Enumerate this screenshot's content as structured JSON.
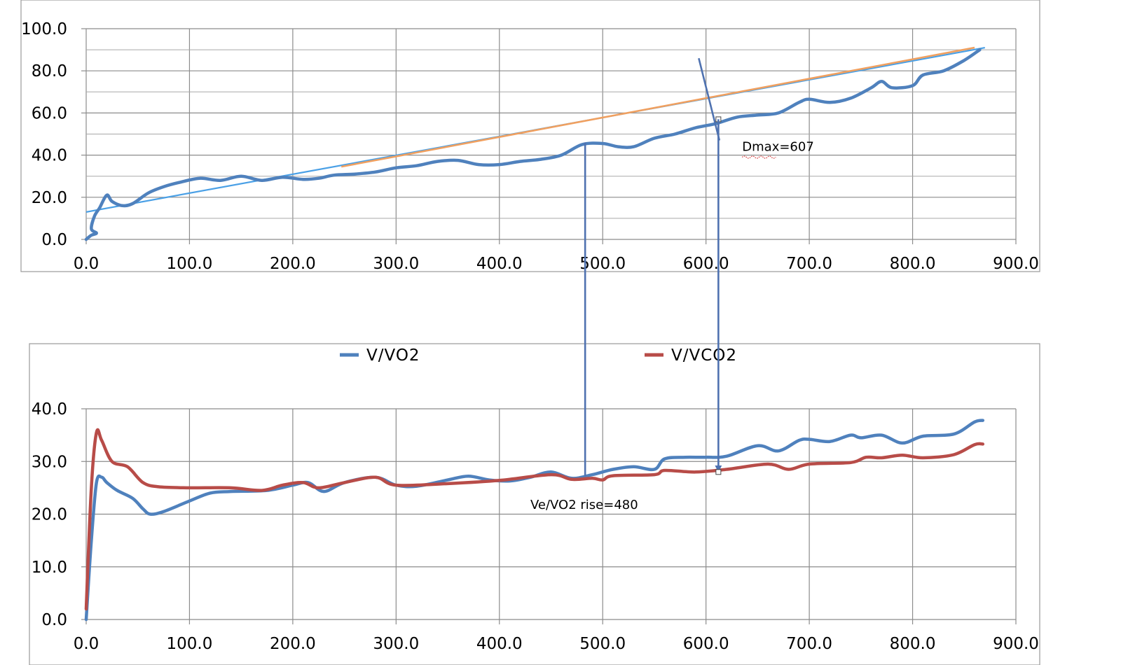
{
  "chart_data": [
    {
      "type": "line",
      "title": "",
      "xlabel": "",
      "ylabel": "",
      "xlim": [
        0,
        900
      ],
      "ylim": [
        0,
        100
      ],
      "x_ticks": [
        "0.0",
        "100.0",
        "200.0",
        "300.0",
        "400.0",
        "500.0",
        "600.0",
        "700.0",
        "800.0",
        "900.0"
      ],
      "y_ticks": [
        "0.0",
        "20.0",
        "40.0",
        "60.0",
        "80.0",
        "100.0"
      ],
      "grid": true,
      "colors": {
        "data": "#4f81bd",
        "fit": "#4aa0e6",
        "chord": "#f0a060",
        "perp": "#4f72b0"
      },
      "series": [
        {
          "points": [
            [
              0,
              0
            ],
            [
              5,
              2
            ],
            [
              10,
              3
            ],
            [
              5,
              5
            ],
            [
              8,
              11
            ],
            [
              13,
              15
            ],
            [
              20,
              21
            ],
            [
              25,
              18
            ],
            [
              35,
              16
            ],
            [
              45,
              17
            ],
            [
              60,
              22
            ],
            [
              75,
              25
            ],
            [
              90,
              27
            ],
            [
              110,
              29
            ],
            [
              130,
              28
            ],
            [
              150,
              30
            ],
            [
              170,
              28
            ],
            [
              190,
              29.5
            ],
            [
              210,
              28.5
            ],
            [
              225,
              29
            ],
            [
              240,
              30.5
            ],
            [
              260,
              31
            ],
            [
              280,
              32
            ],
            [
              300,
              34
            ],
            [
              320,
              35
            ],
            [
              340,
              37
            ],
            [
              360,
              37.5
            ],
            [
              380,
              35.5
            ],
            [
              400,
              35.5
            ],
            [
              420,
              37
            ],
            [
              440,
              38
            ],
            [
              460,
              40
            ],
            [
              480,
              45
            ],
            [
              500,
              45.5
            ],
            [
              515,
              44
            ],
            [
              530,
              44
            ],
            [
              550,
              48
            ],
            [
              570,
              50
            ],
            [
              590,
              53
            ],
            [
              610,
              55
            ],
            [
              630,
              58
            ],
            [
              650,
              59
            ],
            [
              670,
              60
            ],
            [
              690,
              65
            ],
            [
              700,
              66.5
            ],
            [
              720,
              65
            ],
            [
              740,
              67
            ],
            [
              760,
              72
            ],
            [
              770,
              75
            ],
            [
              780,
              72
            ],
            [
              800,
              73
            ],
            [
              810,
              78
            ],
            [
              830,
              80
            ],
            [
              850,
              85
            ],
            [
              865,
              90
            ]
          ]
        },
        {
          "points": [
            [
              0,
              13
            ],
            [
              870,
              91
            ]
          ]
        },
        {
          "points": [
            [
              247,
              34.5
            ],
            [
              860,
              91
            ]
          ]
        },
        {
          "points": [
            [
              593,
              86
            ],
            [
              613,
              47
            ]
          ]
        }
      ],
      "annotations": [
        {
          "text": "Dmax=607",
          "x": 635,
          "y": 42
        }
      ]
    },
    {
      "type": "line",
      "title": "",
      "xlabel": "",
      "ylabel": "",
      "xlim": [
        0,
        900
      ],
      "ylim": [
        0,
        40
      ],
      "x_ticks": [
        "0.0",
        "100.0",
        "200.0",
        "300.0",
        "400.0",
        "500.0",
        "600.0",
        "700.0",
        "800.0",
        "900.0"
      ],
      "y_ticks": [
        "0.0",
        "10.0",
        "20.0",
        "30.0",
        "40.0"
      ],
      "grid": true,
      "legend": "top",
      "series": [
        {
          "name": "V/VO2",
          "color": "#4f81bd",
          "points": [
            [
              0,
              0
            ],
            [
              5,
              15
            ],
            [
              10,
              26
            ],
            [
              15,
              27
            ],
            [
              20,
              26
            ],
            [
              30,
              24.5
            ],
            [
              45,
              23
            ],
            [
              55,
              21
            ],
            [
              62,
              20
            ],
            [
              75,
              20.5
            ],
            [
              100,
              22.5
            ],
            [
              120,
              24
            ],
            [
              140,
              24.3
            ],
            [
              175,
              24.5
            ],
            [
              200,
              25.5
            ],
            [
              215,
              26
            ],
            [
              230,
              24.3
            ],
            [
              250,
              26
            ],
            [
              280,
              27
            ],
            [
              300,
              25.5
            ],
            [
              320,
              25.3
            ],
            [
              350,
              26.5
            ],
            [
              370,
              27.2
            ],
            [
              390,
              26.5
            ],
            [
              410,
              26.3
            ],
            [
              430,
              27
            ],
            [
              450,
              28
            ],
            [
              470,
              26.8
            ],
            [
              490,
              27.5
            ],
            [
              510,
              28.5
            ],
            [
              530,
              29
            ],
            [
              550,
              28.5
            ],
            [
              560,
              30.5
            ],
            [
              580,
              30.8
            ],
            [
              600,
              30.8
            ],
            [
              620,
              31
            ],
            [
              650,
              33
            ],
            [
              670,
              32
            ],
            [
              690,
              34
            ],
            [
              700,
              34.2
            ],
            [
              720,
              33.8
            ],
            [
              740,
              35
            ],
            [
              750,
              34.5
            ],
            [
              770,
              35
            ],
            [
              790,
              33.5
            ],
            [
              810,
              34.8
            ],
            [
              840,
              35.2
            ],
            [
              860,
              37.5
            ],
            [
              868,
              37.8
            ]
          ]
        },
        {
          "name": "V/VCO2",
          "color": "#b84c48",
          "points": [
            [
              0,
              2
            ],
            [
              5,
              25
            ],
            [
              10,
              35.5
            ],
            [
              15,
              34
            ],
            [
              25,
              30
            ],
            [
              40,
              29
            ],
            [
              55,
              26
            ],
            [
              70,
              25.2
            ],
            [
              100,
              25
            ],
            [
              140,
              25
            ],
            [
              170,
              24.5
            ],
            [
              190,
              25.5
            ],
            [
              210,
              26
            ],
            [
              225,
              25
            ],
            [
              250,
              26
            ],
            [
              280,
              27
            ],
            [
              300,
              25.5
            ],
            [
              350,
              25.8
            ],
            [
              400,
              26.4
            ],
            [
              450,
              27.5
            ],
            [
              470,
              26.6
            ],
            [
              490,
              26.8
            ],
            [
              500,
              26.5
            ],
            [
              510,
              27.3
            ],
            [
              550,
              27.5
            ],
            [
              560,
              28.3
            ],
            [
              590,
              28
            ],
            [
              620,
              28.5
            ],
            [
              660,
              29.5
            ],
            [
              680,
              28.5
            ],
            [
              700,
              29.5
            ],
            [
              740,
              29.8
            ],
            [
              755,
              30.8
            ],
            [
              770,
              30.7
            ],
            [
              790,
              31.2
            ],
            [
              810,
              30.7
            ],
            [
              840,
              31.3
            ],
            [
              860,
              33.2
            ],
            [
              868,
              33.3
            ]
          ]
        }
      ],
      "annotations": [
        {
          "text": "Ve/VO2 rise=480",
          "x": 430,
          "y": 21
        }
      ],
      "markers": [
        {
          "x": 483,
          "color": "#4f72b0"
        },
        {
          "x": 612,
          "color": "#4f72b0"
        }
      ]
    }
  ]
}
